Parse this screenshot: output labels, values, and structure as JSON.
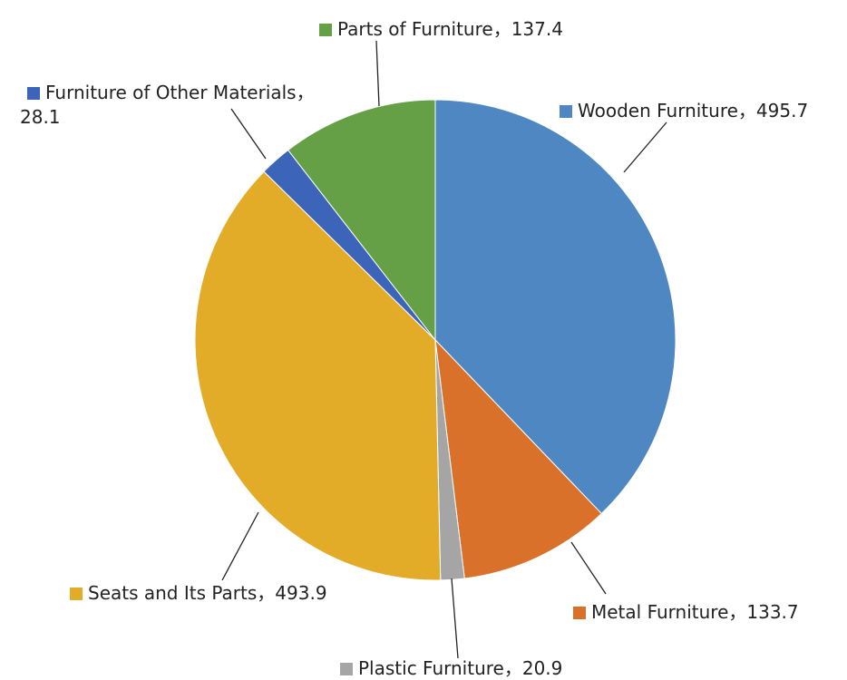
{
  "chart_data": {
    "type": "pie",
    "categories": [
      "Wooden Furniture",
      "Metal Furniture",
      "Plastic Furniture",
      "Seats and Its Parts",
      "Furniture of Other Materials",
      "Parts of Furniture"
    ],
    "values": [
      495.7,
      133.7,
      20.9,
      493.9,
      28.1,
      137.4
    ],
    "colors": [
      "#4f87c2",
      "#d9712b",
      "#a5a5a5",
      "#e3ac28",
      "#3c64b8",
      "#65a046"
    ],
    "label_separator": "，"
  }
}
